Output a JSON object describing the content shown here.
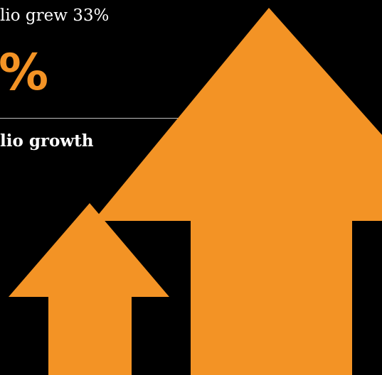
{
  "headline": "lio grew 33%",
  "big_stat": "%",
  "label": "lio growth",
  "colors": {
    "background": "#000000",
    "accent": "#f39325",
    "text": "#ffffff",
    "divider": "#bfbfbf"
  },
  "icons": [
    "large-up-arrow-icon",
    "small-up-arrow-icon"
  ]
}
